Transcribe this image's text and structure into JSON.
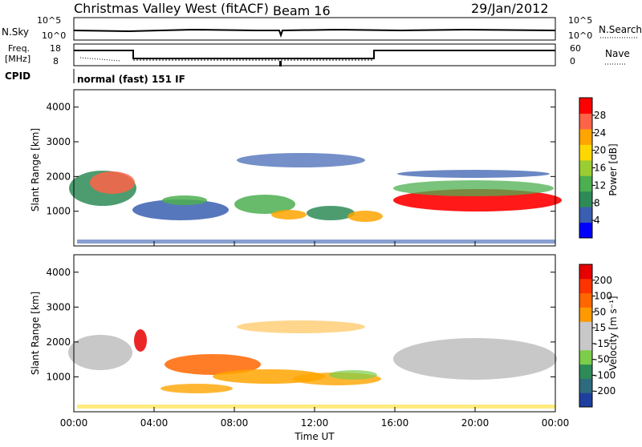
{
  "header": {
    "station": "Christmas Valley West (fitACF)",
    "beam": "Beam 16",
    "date": "29/Jan/2012"
  },
  "status_panels": {
    "left_top_label": "N.Sky",
    "left_top_ticks": [
      "10^5",
      "10^0"
    ],
    "right_top_label": "N.Search",
    "right_top_ticks": [
      "10^5",
      "10^0"
    ],
    "left_mid_label_1": "Freq.",
    "left_mid_label_2": "[MHz]",
    "left_mid_ticks": [
      "18",
      "8"
    ],
    "right_mid_label": "Nave",
    "right_mid_ticks": [
      "60",
      "0"
    ],
    "cpid_label": "CPID",
    "cpid_text": "normal (fast) 151 IF"
  },
  "colors": {
    "power_scale": [
      "#0000ff",
      "#3a5fb0",
      "#2e8b57",
      "#4caf50",
      "#9acd32",
      "#ffd700",
      "#ffa500",
      "#ff6347",
      "#ff0000"
    ],
    "velocity_scale": [
      "#1f3f9f",
      "#2e6b7f",
      "#2e8b57",
      "#7ccd4a",
      "#c8c8c8",
      "#c8c8c8",
      "#ff9900",
      "#ff6600",
      "#ff3300",
      "#e60000"
    ],
    "ground_scatter": "#c0c0c0"
  },
  "chart_data": [
    {
      "type": "heatmap",
      "name": "power",
      "ylabel": "Slant Range [km]",
      "y_ticks": [
        "1000",
        "2000",
        "3000",
        "4000"
      ],
      "colorbar_label": "Power [dB]",
      "colorbar_ticks": [
        "4",
        "8",
        "12",
        "16",
        "20",
        "24",
        "28"
      ],
      "colorbar_range": [
        0,
        30
      ]
    },
    {
      "type": "heatmap",
      "name": "velocity",
      "ylabel": "Slant Range [km]",
      "y_ticks": [
        "1000",
        "2000",
        "3000",
        "4000"
      ],
      "colorbar_label": "Velocity [m s⁻¹]",
      "colorbar_ticks": [
        "200",
        "100",
        "50",
        "15",
        "-15",
        "-50",
        "-100",
        "-200"
      ]
    }
  ],
  "xaxis": {
    "label": "Time UT",
    "ticks": [
      "00:00",
      "04:00",
      "08:00",
      "12:00",
      "16:00",
      "20:00",
      "00:00"
    ]
  }
}
